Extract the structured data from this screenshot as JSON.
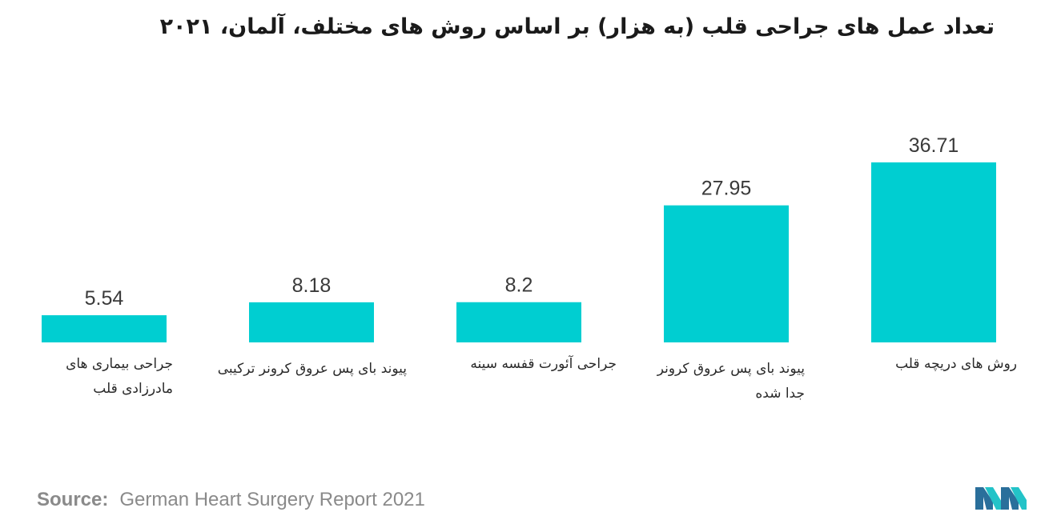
{
  "chart_data": {
    "type": "bar",
    "title": "تعداد عمل های جراحی قلب (به هزار) بر اساس روش های مختلف، آلمان، ۲۰۲۱",
    "categories": [
      "جراحی بیماری های مادرزادی قلب",
      "پیوند بای پس عروق کرونر ترکیبی",
      "جراحی آئورت قفسه سینه",
      "پیوند بای پس عروق کرونر جدا شده",
      "روش های دریچه قلب"
    ],
    "values": [
      5.54,
      8.18,
      8.2,
      27.95,
      36.71
    ],
    "value_labels": [
      "5.54",
      "8.18",
      "8.2",
      "27.95",
      "36.71"
    ],
    "ylim": [
      0,
      36.71
    ],
    "xlabel": "",
    "ylabel": "",
    "grid": false,
    "bar_color": "#00CED1"
  },
  "source": {
    "label": "Source:",
    "text": "German Heart Surgery Report 2021"
  },
  "logo": {
    "icon": "mordor-intelligence-logo-icon",
    "colors": [
      "#2a6f9b",
      "#23c3c8"
    ]
  }
}
